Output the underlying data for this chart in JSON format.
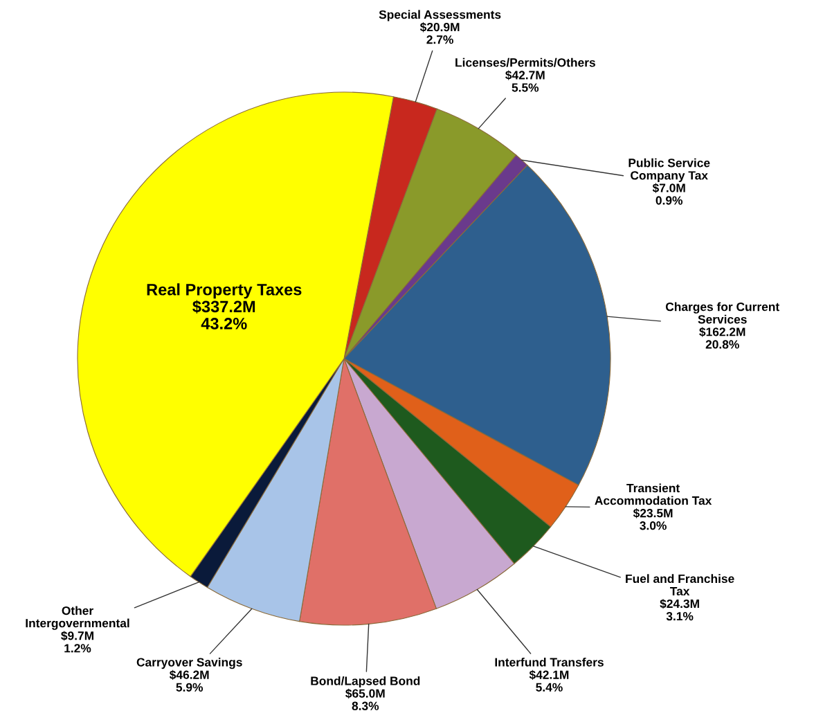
{
  "chart_data": {
    "type": "pie",
    "categories": [
      "Special Assessments",
      "Licenses/Permits/Others",
      "Public Service\nCompany Tax",
      "Charges for Current\nServices",
      "Transient\nAccommodation Tax",
      "Fuel and Franchise\nTax",
      "Interfund Transfers",
      "Bond/Lapsed Bond",
      "Carryover Savings",
      "Other\nIntergovernmental",
      "Real Property Taxes"
    ],
    "values": [
      2.7,
      5.5,
      0.9,
      20.8,
      3.0,
      3.1,
      5.4,
      8.3,
      5.9,
      1.2,
      43.2
    ],
    "value_labels": [
      "$20.9M\n2.7%",
      "$42.7M\n5.5%",
      "$7.0M\n0.9%",
      "$162.2M\n20.8%",
      "$23.5M\n3.0%",
      "$24.3M\n3.1%",
      "$42.1M\n5.4%",
      "$65.0M\n8.3%",
      "$46.2M\n5.9%",
      "$9.7M\n1.2%",
      "$337.2M\n43.2%"
    ],
    "colors": [
      "#c8281e",
      "#8a9a2a",
      "#6a3a8c",
      "#2e5f8e",
      "#e0601a",
      "#1e5a1e",
      "#c8a8d0",
      "#e07068",
      "#a8c4e8",
      "#0a1a3a",
      "#ffff00"
    ]
  }
}
